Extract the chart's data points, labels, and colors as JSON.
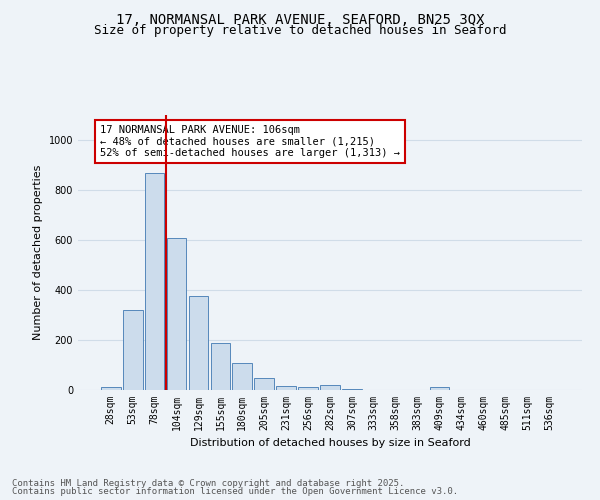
{
  "title_line1": "17, NORMANSAL PARK AVENUE, SEAFORD, BN25 3QX",
  "title_line2": "Size of property relative to detached houses in Seaford",
  "xlabel": "Distribution of detached houses by size in Seaford",
  "ylabel": "Number of detached properties",
  "categories": [
    "28sqm",
    "53sqm",
    "78sqm",
    "104sqm",
    "129sqm",
    "155sqm",
    "180sqm",
    "205sqm",
    "231sqm",
    "256sqm",
    "282sqm",
    "307sqm",
    "333sqm",
    "358sqm",
    "383sqm",
    "409sqm",
    "434sqm",
    "460sqm",
    "485sqm",
    "511sqm",
    "536sqm"
  ],
  "values": [
    12,
    320,
    868,
    607,
    378,
    190,
    107,
    47,
    18,
    12,
    20,
    5,
    0,
    0,
    0,
    12,
    0,
    0,
    0,
    0,
    0
  ],
  "bar_color": "#ccdcec",
  "bar_edge_color": "#5588bb",
  "vline_bin": 2,
  "subject_line_label": "17 NORMANSAL PARK AVENUE: 106sqm",
  "annotation_line2": "← 48% of detached houses are smaller (1,215)",
  "annotation_line3": "52% of semi-detached houses are larger (1,313) →",
  "annotation_box_color": "#ffffff",
  "annotation_box_edge_color": "#cc0000",
  "vline_color": "#cc0000",
  "ylim": [
    0,
    1100
  ],
  "yticks": [
    0,
    200,
    400,
    600,
    800,
    1000
  ],
  "footer_line1": "Contains HM Land Registry data © Crown copyright and database right 2025.",
  "footer_line2": "Contains public sector information licensed under the Open Government Licence v3.0.",
  "bg_color": "#eef3f8",
  "plot_bg_color": "#eef3f8",
  "grid_color": "#d0dce8",
  "title_fontsize": 10,
  "subtitle_fontsize": 9,
  "axis_label_fontsize": 8,
  "tick_fontsize": 7,
  "annotation_fontsize": 7.5,
  "footer_fontsize": 6.5
}
